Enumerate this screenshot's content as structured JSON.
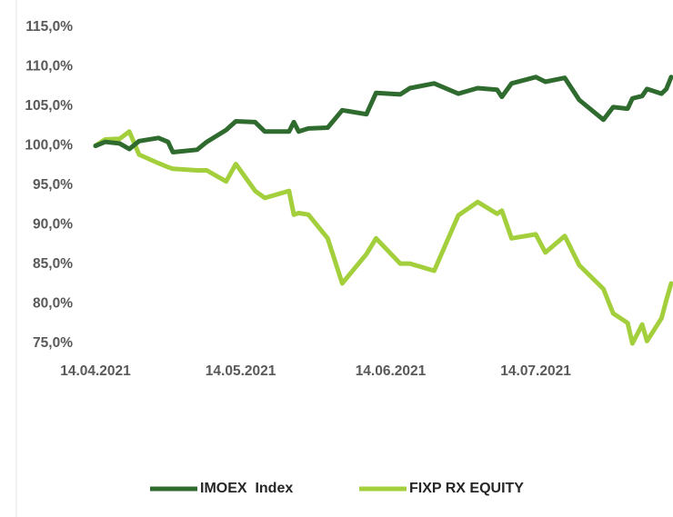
{
  "chart_data": {
    "type": "line",
    "x": [
      "14.04.2021",
      "16.04.2021",
      "19.04.2021",
      "21.04.2021",
      "23.04.2021",
      "27.04.2021",
      "29.04.2021",
      "30.04.2021",
      "05.05.2021",
      "07.05.2021",
      "11.05.2021",
      "13.05.2021",
      "17.05.2021",
      "19.05.2021",
      "24.05.2021",
      "25.05.2021",
      "26.05.2021",
      "28.05.2021",
      "01.06.2021",
      "04.06.2021",
      "09.06.2021",
      "11.06.2021",
      "16.06.2021",
      "18.06.2021",
      "23.06.2021",
      "28.06.2021",
      "02.07.2021",
      "06.07.2021",
      "07.07.2021",
      "09.07.2021",
      "14.07.2021",
      "16.07.2021",
      "20.07.2021",
      "23.07.2021",
      "28.07.2021",
      "30.07.2021",
      "02.08.2021",
      "03.08.2021",
      "05.08.2021",
      "06.08.2021",
      "09.08.2021",
      "10.08.2021",
      "11.08.2021"
    ],
    "series": [
      {
        "name": "IMOEX  Index",
        "color": "#2f6b2f",
        "values": [
          100.0,
          100.5,
          100.3,
          99.6,
          100.6,
          101.0,
          100.5,
          99.2,
          99.5,
          100.5,
          102.0,
          103.1,
          103.0,
          101.8,
          101.8,
          103.0,
          101.8,
          102.2,
          102.3,
          104.5,
          104.0,
          106.7,
          106.5,
          107.3,
          107.9,
          106.6,
          107.3,
          107.1,
          106.2,
          107.9,
          108.7,
          108.1,
          108.6,
          105.8,
          103.3,
          104.9,
          104.7,
          106.0,
          106.3,
          107.2,
          106.6,
          107.2,
          108.7
        ]
      },
      {
        "name": "FIXP RX EQUITY",
        "color": "#a3cf3c",
        "values": [
          100.0,
          100.8,
          100.9,
          101.8,
          98.9,
          97.8,
          97.3,
          97.1,
          96.9,
          96.9,
          95.5,
          97.7,
          94.3,
          93.4,
          94.3,
          91.3,
          91.5,
          91.3,
          88.3,
          82.6,
          86.3,
          88.3,
          85.1,
          85.1,
          84.2,
          91.2,
          92.9,
          91.4,
          91.8,
          88.3,
          88.8,
          86.5,
          88.6,
          84.9,
          81.9,
          78.8,
          77.6,
          75.0,
          77.4,
          75.3,
          78.2,
          80.5,
          82.6
        ]
      }
    ],
    "xlim": [
      "14.04.2021",
      "11.08.2021"
    ],
    "xticks": [
      "14.04.2021",
      "14.05.2021",
      "14.06.2021",
      "14.07.2021"
    ],
    "ylim": [
      75,
      115
    ],
    "yticks": [
      {
        "value": 75,
        "label": "75,0%"
      },
      {
        "value": 80,
        "label": "80,0%"
      },
      {
        "value": 85,
        "label": "85,0%"
      },
      {
        "value": 90,
        "label": "90,0%"
      },
      {
        "value": 95,
        "label": "95,0%"
      },
      {
        "value": 100,
        "label": "100,0%"
      },
      {
        "value": 105,
        "label": "105,0%"
      },
      {
        "value": 110,
        "label": "110,0%"
      },
      {
        "value": 115,
        "label": "115,0%"
      }
    ],
    "grid": false,
    "legend": "bottom"
  }
}
